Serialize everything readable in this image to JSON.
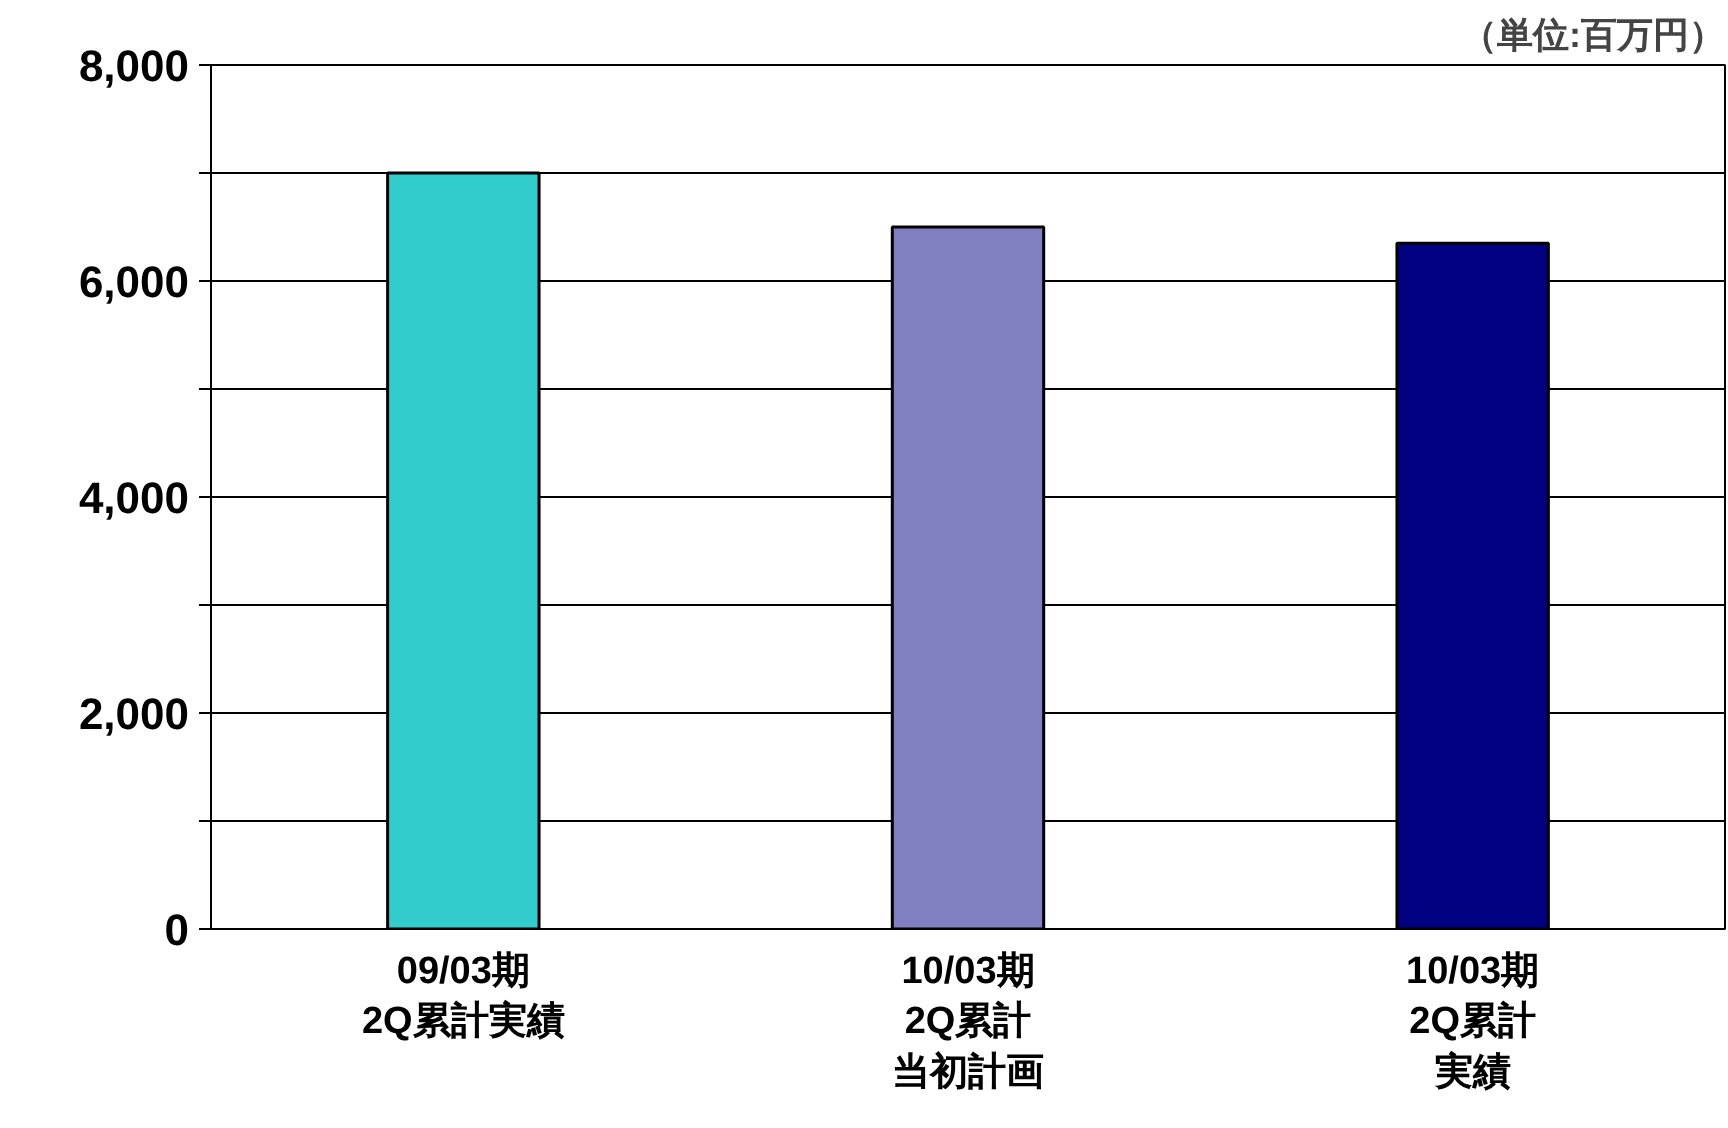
{
  "chart_data": {
    "type": "bar",
    "categories": [
      "09/03期\n2Q累計実績",
      "10/03期\n2Q累計当初計画",
      "10/03期\n2Q累計実績"
    ],
    "values": [
      7000,
      6500,
      6350
    ],
    "colors": [
      "#33cccc",
      "#8080c0",
      "#000080"
    ],
    "ylim": [
      0,
      8000
    ],
    "yticks": [
      0,
      {
        "value": 1000,
        "label": null
      },
      "2,000",
      {
        "value": 3000,
        "label": null
      },
      {
        "value": 4000,
        "label": "4,000"
      },
      {
        "value": 5000,
        "label": null
      },
      {
        "value": 6000,
        "label": "6,000"
      },
      {
        "value": 7000,
        "label": null
      },
      {
        "value": 8000,
        "label": "8,000"
      }
    ],
    "grid": "y",
    "annotations": [
      "（単位:百万円）"
    ]
  }
}
